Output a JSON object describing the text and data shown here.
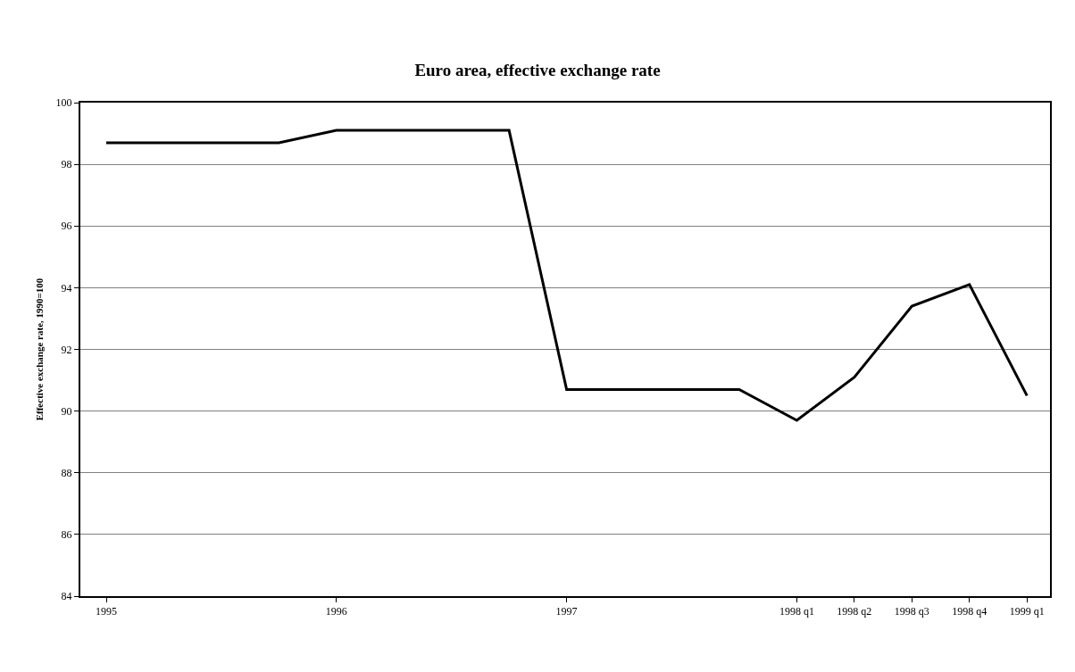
{
  "chart_data": {
    "type": "line",
    "title": "Euro area, effective exchange rate",
    "ylabel": "Effective exchange rate, 1990=100",
    "categories": [
      "1995",
      null,
      null,
      null,
      "1996",
      null,
      null,
      null,
      "1997",
      null,
      null,
      null,
      "1998 q1",
      "1998 q2",
      "1998 q3",
      "1998 q4",
      "1999 q1"
    ],
    "series": [
      {
        "color": "#000000",
        "values": [
          98.7,
          98.7,
          98.7,
          98.7,
          99.1,
          99.1,
          99.1,
          99.1,
          90.7,
          90.7,
          90.7,
          90.7,
          89.7,
          91.1,
          93.4,
          94.1,
          90.5
        ]
      }
    ],
    "ylim": [
      84,
      100
    ],
    "yticks": [
      84,
      86,
      88,
      90,
      92,
      94,
      96,
      98,
      100
    ],
    "grid": "y",
    "marker": "none",
    "line_style": "solid"
  }
}
